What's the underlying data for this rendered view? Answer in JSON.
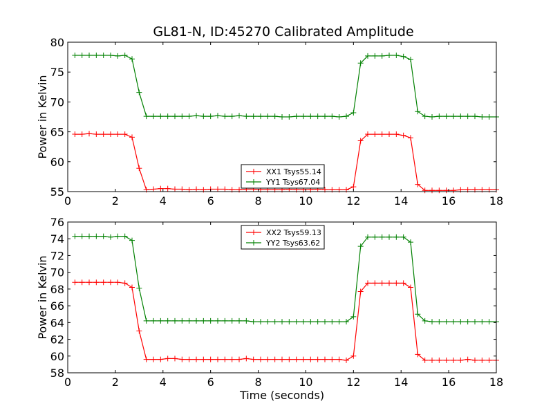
{
  "title": "GL81-N, ID:45270 Calibrated Amplitude",
  "colors": {
    "red": "#ff0000",
    "green": "#008000"
  },
  "chart_data": [
    {
      "type": "line",
      "title": "GL81-N, ID:45270 Calibrated Amplitude",
      "xlabel": "",
      "ylabel": "Power in Kelvin",
      "xlim": [
        0,
        18
      ],
      "ylim": [
        55,
        80
      ],
      "xticks": [
        0,
        2,
        4,
        6,
        8,
        10,
        12,
        14,
        16,
        18
      ],
      "yticks": [
        55,
        60,
        65,
        70,
        75,
        80
      ],
      "legend_position": "bottom-center",
      "x": [
        0.3,
        0.6,
        0.9,
        1.2,
        1.5,
        1.8,
        2.1,
        2.4,
        2.7,
        3.0,
        3.3,
        3.6,
        3.9,
        4.2,
        4.5,
        4.8,
        5.1,
        5.4,
        5.7,
        6.0,
        6.3,
        6.6,
        6.9,
        7.2,
        7.5,
        7.8,
        8.1,
        8.4,
        8.7,
        9.0,
        9.3,
        9.6,
        9.9,
        10.2,
        10.5,
        10.8,
        11.1,
        11.4,
        11.7,
        12.0,
        12.3,
        12.6,
        12.9,
        13.2,
        13.5,
        13.8,
        14.1,
        14.4,
        14.7,
        15.0,
        15.3,
        15.6,
        15.9,
        16.2,
        16.5,
        16.8,
        17.1,
        17.4,
        17.7,
        18.0
      ],
      "series": [
        {
          "name": "XX1 Tsys55.14",
          "color": "#ff0000",
          "values": [
            64.6,
            64.6,
            64.7,
            64.6,
            64.6,
            64.6,
            64.6,
            64.6,
            64.1,
            58.9,
            55.3,
            55.4,
            55.5,
            55.5,
            55.4,
            55.4,
            55.3,
            55.4,
            55.3,
            55.4,
            55.4,
            55.4,
            55.3,
            55.3,
            55.4,
            55.4,
            55.3,
            55.3,
            55.3,
            55.3,
            55.4,
            55.3,
            55.3,
            55.3,
            55.4,
            55.3,
            55.3,
            55.3,
            55.3,
            55.8,
            63.5,
            64.6,
            64.6,
            64.6,
            64.6,
            64.6,
            64.4,
            64.0,
            56.2,
            55.2,
            55.2,
            55.2,
            55.2,
            55.2,
            55.3,
            55.3,
            55.3,
            55.3,
            55.3,
            55.3
          ]
        },
        {
          "name": "YY1 Tsys67.04",
          "color": "#008000",
          "values": [
            77.8,
            77.8,
            77.8,
            77.8,
            77.8,
            77.8,
            77.7,
            77.8,
            77.2,
            71.6,
            67.6,
            67.6,
            67.6,
            67.6,
            67.6,
            67.6,
            67.6,
            67.7,
            67.6,
            67.6,
            67.7,
            67.6,
            67.6,
            67.7,
            67.6,
            67.6,
            67.6,
            67.6,
            67.6,
            67.5,
            67.5,
            67.6,
            67.6,
            67.6,
            67.6,
            67.6,
            67.6,
            67.5,
            67.6,
            68.2,
            76.5,
            77.7,
            77.7,
            77.7,
            77.8,
            77.8,
            77.6,
            77.1,
            68.4,
            67.6,
            67.5,
            67.6,
            67.6,
            67.6,
            67.6,
            67.6,
            67.6,
            67.5,
            67.5,
            67.5
          ]
        }
      ]
    },
    {
      "type": "line",
      "title": "",
      "xlabel": "Time (seconds)",
      "ylabel": "Power in Kelvin",
      "xlim": [
        0,
        18
      ],
      "ylim": [
        58,
        76
      ],
      "xticks": [
        0,
        2,
        4,
        6,
        8,
        10,
        12,
        14,
        16,
        18
      ],
      "yticks": [
        58,
        60,
        62,
        64,
        66,
        68,
        70,
        72,
        74,
        76
      ],
      "legend_position": "top-center",
      "x": [
        0.3,
        0.6,
        0.9,
        1.2,
        1.5,
        1.8,
        2.1,
        2.4,
        2.7,
        3.0,
        3.3,
        3.6,
        3.9,
        4.2,
        4.5,
        4.8,
        5.1,
        5.4,
        5.7,
        6.0,
        6.3,
        6.6,
        6.9,
        7.2,
        7.5,
        7.8,
        8.1,
        8.4,
        8.7,
        9.0,
        9.3,
        9.6,
        9.9,
        10.2,
        10.5,
        10.8,
        11.1,
        11.4,
        11.7,
        12.0,
        12.3,
        12.6,
        12.9,
        13.2,
        13.5,
        13.8,
        14.1,
        14.4,
        14.7,
        15.0,
        15.3,
        15.6,
        15.9,
        16.2,
        16.5,
        16.8,
        17.1,
        17.4,
        17.7,
        18.0
      ],
      "series": [
        {
          "name": "XX2 Tsys59.13",
          "color": "#ff0000",
          "values": [
            68.8,
            68.8,
            68.8,
            68.8,
            68.8,
            68.8,
            68.8,
            68.7,
            68.2,
            63.0,
            59.6,
            59.6,
            59.6,
            59.7,
            59.7,
            59.6,
            59.6,
            59.6,
            59.6,
            59.6,
            59.6,
            59.6,
            59.6,
            59.6,
            59.7,
            59.6,
            59.6,
            59.6,
            59.6,
            59.6,
            59.6,
            59.6,
            59.6,
            59.6,
            59.6,
            59.6,
            59.6,
            59.6,
            59.5,
            60.0,
            67.7,
            68.7,
            68.7,
            68.7,
            68.7,
            68.7,
            68.7,
            68.2,
            60.2,
            59.5,
            59.5,
            59.5,
            59.5,
            59.5,
            59.5,
            59.6,
            59.5,
            59.5,
            59.5,
            59.5
          ]
        },
        {
          "name": "YY2 Tsys63.62",
          "color": "#008000",
          "values": [
            74.3,
            74.3,
            74.3,
            74.3,
            74.3,
            74.2,
            74.3,
            74.3,
            73.8,
            68.1,
            64.2,
            64.2,
            64.2,
            64.2,
            64.2,
            64.2,
            64.2,
            64.2,
            64.2,
            64.2,
            64.2,
            64.2,
            64.2,
            64.2,
            64.2,
            64.1,
            64.1,
            64.1,
            64.1,
            64.1,
            64.1,
            64.1,
            64.1,
            64.1,
            64.1,
            64.1,
            64.1,
            64.1,
            64.1,
            64.7,
            73.1,
            74.2,
            74.2,
            74.2,
            74.2,
            74.2,
            74.2,
            73.6,
            65.0,
            64.2,
            64.1,
            64.1,
            64.1,
            64.1,
            64.1,
            64.1,
            64.1,
            64.1,
            64.1,
            64.1
          ]
        }
      ]
    }
  ]
}
